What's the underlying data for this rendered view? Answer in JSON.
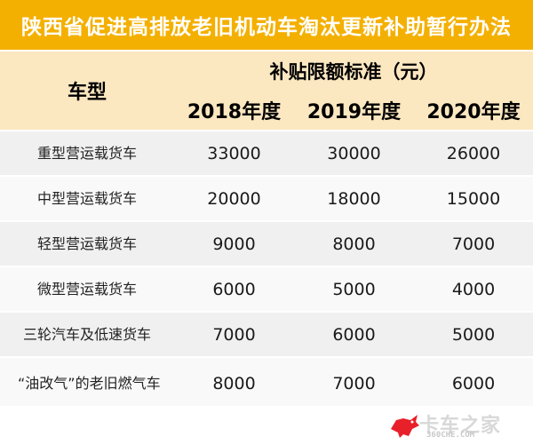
{
  "title": "陕西省促进高排放老旧机动车淘汰更新补助暂行办法",
  "header": {
    "model_label": "车型",
    "standard_label": "补贴限额标准（元）",
    "years": [
      "2018年度",
      "2019年度",
      "2020年度"
    ]
  },
  "rows": [
    {
      "model": "重型营运载货车",
      "values": [
        "33000",
        "30000",
        "26000"
      ]
    },
    {
      "model": "中型营运载货车",
      "values": [
        "20000",
        "18000",
        "15000"
      ]
    },
    {
      "model": "轻型营运载货车",
      "values": [
        "9000",
        "8000",
        "7000"
      ]
    },
    {
      "model": "微型营运载货车",
      "values": [
        "6000",
        "5000",
        "4000"
      ]
    },
    {
      "model": "三轮汽车及低速货车",
      "values": [
        "7000",
        "6000",
        "5000"
      ]
    },
    {
      "model": "“油改气”的老旧燃气车",
      "values": [
        "8000",
        "7000",
        "6000"
      ]
    }
  ],
  "watermark": {
    "name": "卡车之家",
    "sub": "360CHE.COM",
    "icon": "bull-logo-icon",
    "colors": {
      "icon": "#e8202a",
      "text": "#d8d8d8"
    }
  },
  "colors": {
    "title_bg": "#f4b000",
    "header_bg": "#fbe7c0",
    "row_a": "#f0f0f0",
    "row_b": "#f9f9f9"
  }
}
